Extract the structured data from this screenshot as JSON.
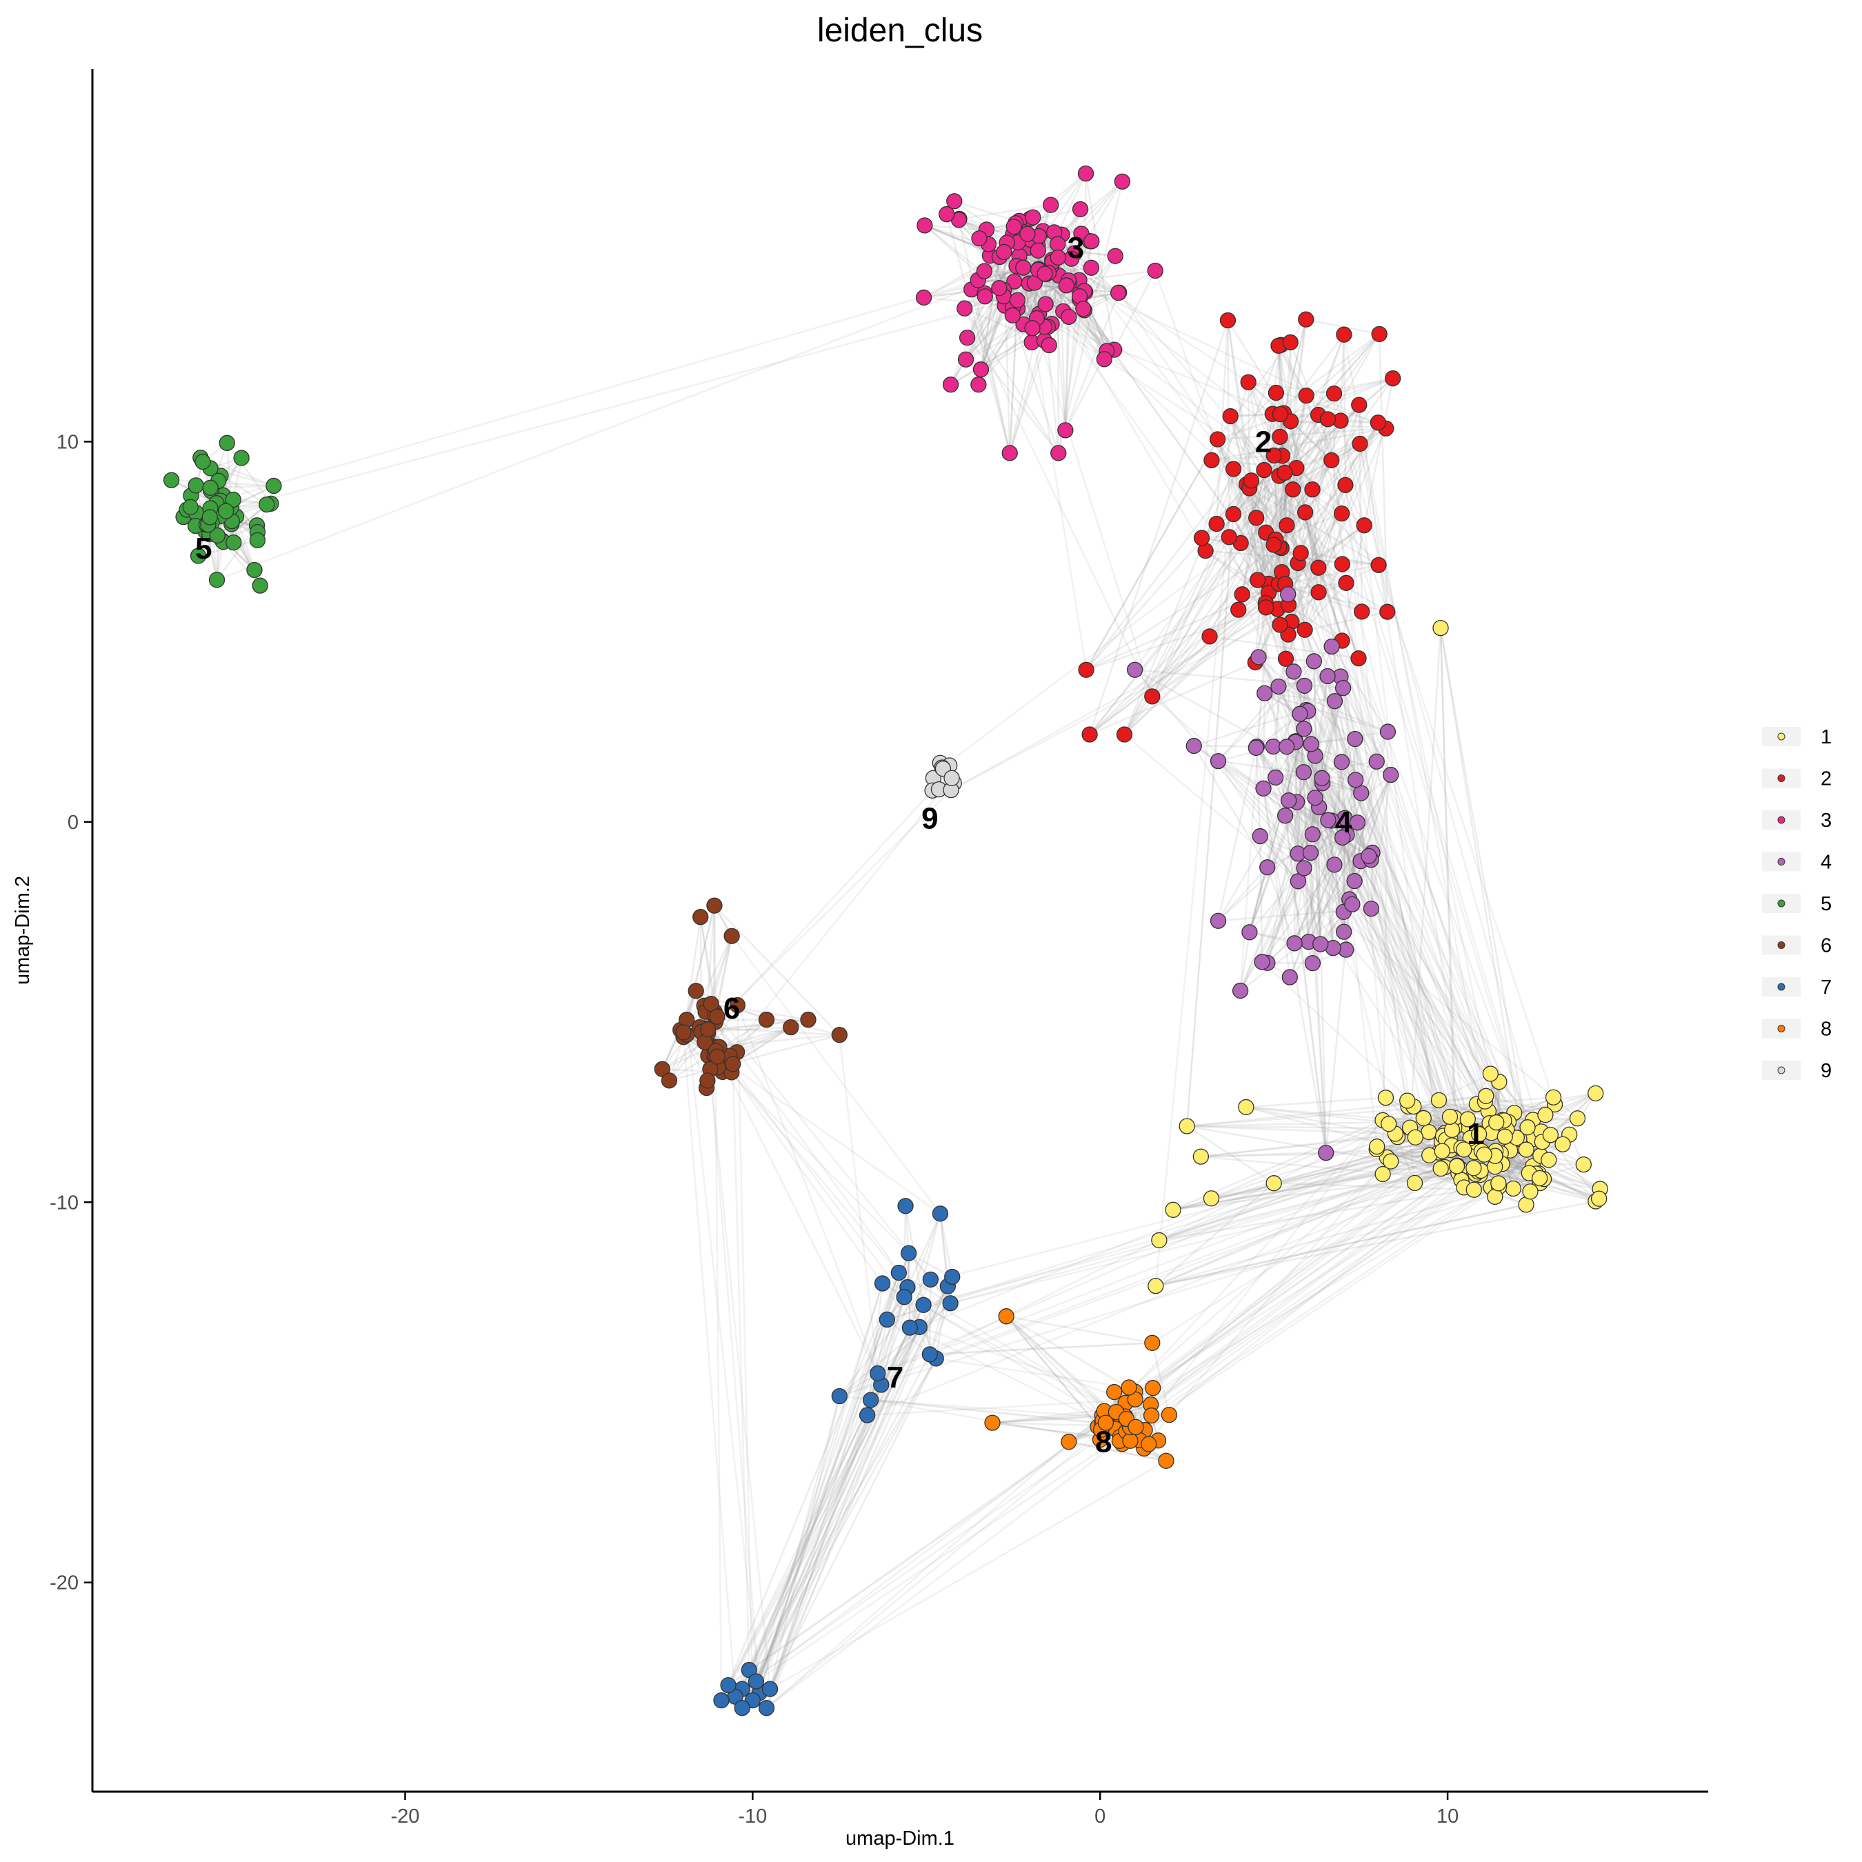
{
  "chart_data": {
    "type": "scatter",
    "title": "leiden_clus",
    "xlabel": "umap-Dim.1",
    "ylabel": "umap-Dim.2",
    "xlim": [
      -29,
      17.5
    ],
    "ylim": [
      -25.5,
      19.8
    ],
    "xticks": [
      -20,
      -10,
      0,
      10
    ],
    "yticks": [
      10,
      0,
      -10,
      -20
    ],
    "grid": false,
    "legend_position": "right",
    "point_outline_color": "#333333",
    "edge_color": "#9a9a9a",
    "clusters": [
      {
        "name": "1",
        "color": "#FFED6F",
        "label_pos": [
          10.8,
          -8.2
        ],
        "center": [
          11,
          -8.5
        ],
        "spread": [
          2.2,
          1.1
        ],
        "count": 120,
        "extra": [
          [
            9.8,
            5.1
          ],
          [
            2.5,
            -8
          ],
          [
            4.2,
            -7.5
          ],
          [
            5,
            -9.5
          ],
          [
            1.6,
            -12.2
          ],
          [
            1.7,
            -11
          ],
          [
            2.1,
            -10.2
          ],
          [
            2.9,
            -8.8
          ],
          [
            3.2,
            -9.9
          ]
        ]
      },
      {
        "name": "2",
        "color": "#E41A1C",
        "label_pos": [
          4.7,
          10
        ],
        "center": [
          5.5,
          8.5
        ],
        "spread": [
          2.0,
          3.0
        ],
        "count": 85,
        "extra": [
          [
            -0.4,
            4
          ],
          [
            -0.3,
            2.3
          ],
          [
            0.7,
            2.3
          ],
          [
            1.5,
            3.3
          ],
          [
            8,
            10.5
          ],
          [
            7.6,
            7.8
          ]
        ]
      },
      {
        "name": "3",
        "color": "#E7298A",
        "label_pos": [
          -0.7,
          15.1
        ],
        "center": [
          -1.8,
          14.5
        ],
        "spread": [
          1.9,
          1.6
        ],
        "count": 110,
        "extra": [
          [
            -4.3,
            11.5
          ],
          [
            -3.5,
            11.5
          ],
          [
            -2.6,
            9.7
          ],
          [
            -1.2,
            9.7
          ],
          [
            -1,
            10.3
          ]
        ]
      },
      {
        "name": "4",
        "color": "#B266B8",
        "label_pos": [
          7,
          0
        ],
        "center": [
          6.3,
          0.5
        ],
        "spread": [
          1.6,
          3.4
        ],
        "count": 75,
        "extra": [
          [
            3.4,
            1.6
          ],
          [
            2.7,
            2
          ],
          [
            1,
            4
          ],
          [
            3.4,
            -2.6
          ],
          [
            4.3,
            -2.9
          ],
          [
            6.5,
            -8.7
          ]
        ]
      },
      {
        "name": "5",
        "color": "#3CA03C",
        "label_pos": [
          -25.8,
          7.2
        ],
        "center": [
          -25.4,
          8.2
        ],
        "spread": [
          0.8,
          1.1
        ],
        "count": 55,
        "extra": []
      },
      {
        "name": "6",
        "color": "#8B3E1E",
        "label_pos": [
          -10.6,
          -4.9
        ],
        "center": [
          -11.3,
          -5.6
        ],
        "spread": [
          0.6,
          0.8
        ],
        "count": 38,
        "extra": [
          [
            -11.1,
            -2.2
          ],
          [
            -11.5,
            -2.5
          ],
          [
            -10.6,
            -3
          ],
          [
            -9.6,
            -5.2
          ],
          [
            -8.9,
            -5.4
          ],
          [
            -8.4,
            -5.2
          ],
          [
            -7.5,
            -5.6
          ],
          [
            -12.6,
            -6.5
          ],
          [
            -12.4,
            -6.8
          ],
          [
            -11.3,
            -6.8
          ]
        ]
      },
      {
        "name": "7",
        "color": "#2F6DB3",
        "label_pos": [
          -5.9,
          -14.6
        ],
        "center": [
          -5,
          -12
        ],
        "spread": [
          0.9,
          1.0
        ],
        "count": 14,
        "extra": [
          [
            -5.6,
            -10.1
          ],
          [
            -4.6,
            -10.3
          ],
          [
            -7.5,
            -15.1
          ],
          [
            -6.6,
            -15.2
          ],
          [
            -6.3,
            -14.8
          ],
          [
            -6.4,
            -14.5
          ],
          [
            -6.7,
            -15.6
          ],
          [
            -4.9,
            -14
          ],
          [
            -10.1,
            -22.3
          ],
          [
            -10.3,
            -22.8
          ],
          [
            -9.8,
            -22.9
          ],
          [
            -10,
            -23.1
          ],
          [
            -10.5,
            -23
          ],
          [
            -9.6,
            -23.3
          ],
          [
            -10.3,
            -23.3
          ],
          [
            -10.7,
            -22.7
          ],
          [
            -9.5,
            -22.8
          ],
          [
            -10.9,
            -23.1
          ],
          [
            -9.9,
            -22.6
          ]
        ]
      },
      {
        "name": "8",
        "color": "#FF7F00",
        "label_pos": [
          0.1,
          -16.3
        ],
        "center": [
          0.9,
          -15.7
        ],
        "spread": [
          0.7,
          0.6
        ],
        "count": 38,
        "extra": [
          [
            -2.7,
            -13
          ],
          [
            -3.1,
            -15.8
          ],
          [
            -0.9,
            -16.3
          ],
          [
            1.9,
            -16.8
          ],
          [
            1.5,
            -13.7
          ]
        ]
      },
      {
        "name": "9",
        "color": "#D9D9D9",
        "label_pos": [
          -4.9,
          0.1
        ],
        "center": [
          -4.5,
          1
        ],
        "spread": [
          0.3,
          0.5
        ],
        "count": 10,
        "extra": []
      }
    ]
  }
}
